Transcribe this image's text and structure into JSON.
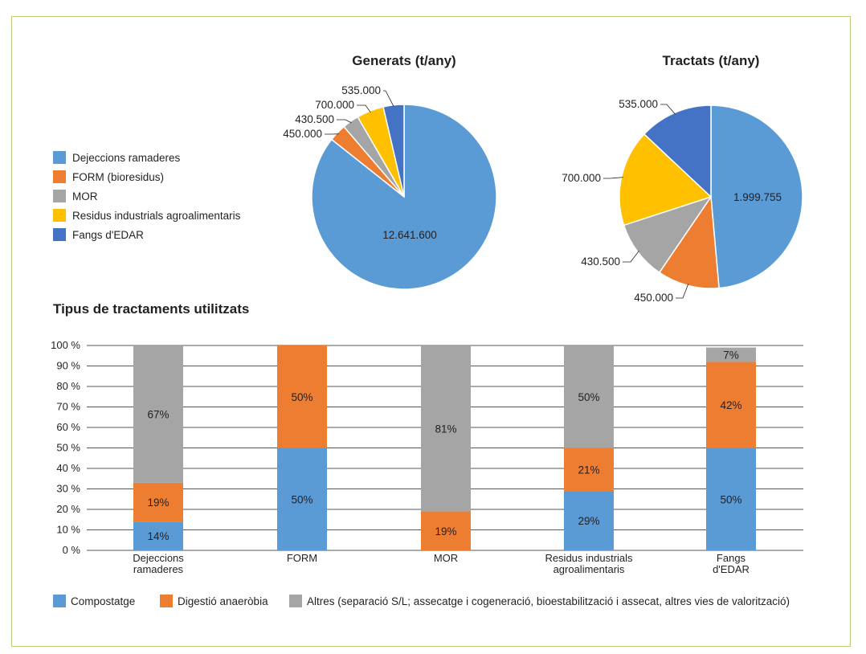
{
  "colors": {
    "Compostatge": "#5b9bd5",
    "Digestio": "#ed7d31",
    "Altres": "#a5a5a5",
    "Dejeccions": "#5b9bd5",
    "FORM": "#ed7d31",
    "MOR": "#a5a5a5",
    "Residus": "#ffc000",
    "Fangs": "#4472c4",
    "border": "#b7cf7c"
  },
  "chart_data": [
    {
      "type": "pie",
      "title": "Generats (t/any)",
      "labels": [
        "Dejeccions ramaderes",
        "FORM (bioresidus)",
        "MOR",
        "Residus industrials agroalimentaris",
        "Fangs d'EDAR"
      ],
      "values": [
        12641600,
        450000,
        430500,
        700000,
        535000
      ],
      "value_labels": [
        "12.641.600",
        "450.000",
        "430.500",
        "700.000",
        "535.000"
      ]
    },
    {
      "type": "pie",
      "title": "Tractats (t/any)",
      "labels": [
        "Dejeccions ramaderes",
        "FORM (bioresidus)",
        "MOR",
        "Residus industrials agroalimentaris",
        "Fangs d'EDAR"
      ],
      "values": [
        1999755,
        450000,
        430500,
        700000,
        535000
      ],
      "value_labels": [
        "1.999.755",
        "450.000",
        "430.500",
        "700.000",
        "535.000"
      ]
    },
    {
      "type": "bar",
      "stacked": true,
      "title": "Tipus de tractaments utilitzats",
      "categories": [
        [
          "Dejeccions",
          "ramaderes"
        ],
        [
          "FORM"
        ],
        [
          "MOR"
        ],
        [
          "Residus industrials",
          "agroalimentaris"
        ],
        [
          "Fangs",
          "d'EDAR"
        ]
      ],
      "series": [
        {
          "name": "Compostatge",
          "values": [
            14,
            50,
            0,
            29,
            50
          ],
          "labels": [
            "14%",
            "50%",
            "",
            "29%",
            "50%"
          ]
        },
        {
          "name": "Digestió anaeròbia",
          "values": [
            19,
            50,
            19,
            21,
            42
          ],
          "labels": [
            "19%",
            "50%",
            "19%",
            "21%",
            "42%"
          ]
        },
        {
          "name": "Altres (separació S/L; assecatge i cogeneració, bioestabilització i assecat, altres vies de valorització)",
          "values": [
            67,
            0,
            81,
            50,
            7
          ],
          "labels": [
            "67%",
            "",
            "81%",
            "50%",
            "7%"
          ]
        }
      ],
      "yticks": [
        "0 %",
        "10 %",
        "20 %",
        "30 %",
        "40 %",
        "50 %",
        "60 %",
        "70 %",
        "80 %",
        "90 %",
        "100 %"
      ],
      "ylim": [
        0,
        100
      ],
      "grid": true,
      "legend": "bottom"
    }
  ],
  "pie_legend": {
    "items": [
      {
        "label": "Dejeccions ramaderes",
        "key": "Dejeccions"
      },
      {
        "label": "FORM (bioresidus)",
        "key": "FORM"
      },
      {
        "label": "MOR",
        "key": "MOR"
      },
      {
        "label": "Residus industrials agroalimentaris",
        "key": "Residus"
      },
      {
        "label": "Fangs d'EDAR",
        "key": "Fangs"
      }
    ]
  },
  "bar_legend": {
    "items": [
      {
        "label": "Compostatge",
        "key": "Compostatge"
      },
      {
        "label": "Digestió anaeròbia",
        "key": "Digestio"
      },
      {
        "label": "Altres (separació S/L; assecatge i cogeneració, bioestabilització i assecat, altres vies de valorització)",
        "key": "Altres"
      }
    ]
  }
}
